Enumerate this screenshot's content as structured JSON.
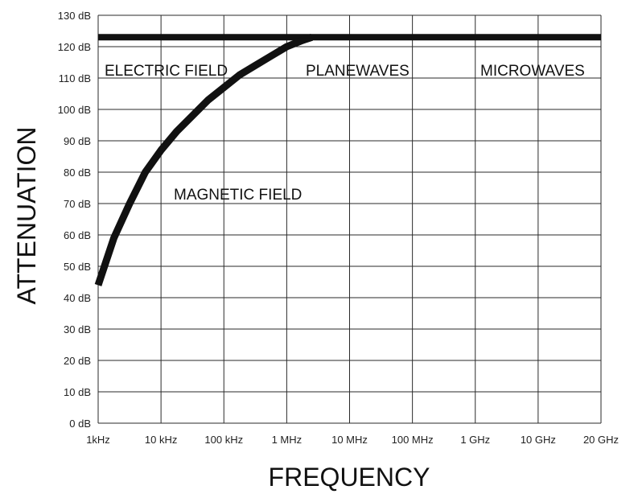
{
  "chart_data": {
    "type": "line",
    "xlabel": "FREQUENCY",
    "ylabel": "ATTENUATION",
    "x_tick_labels": [
      "1kHz",
      "10 kHz",
      "100 kHz",
      "1 MHz",
      "10 MHz",
      "100 MHz",
      "1 GHz",
      "10 GHz",
      "20 GHz"
    ],
    "y_tick_labels": [
      "0 dB",
      "10 dB",
      "20 dB",
      "30 dB",
      "40 dB",
      "50 dB",
      "60 dB",
      "70 dB",
      "80 dB",
      "90 dB",
      "100 dB",
      "110 dB",
      "120 dB",
      "130 dB"
    ],
    "ylim": [
      0,
      130
    ],
    "x_scale": "log",
    "grid": true,
    "annotations": [
      "ELECTRIC FIELD",
      "PLANEWAVES",
      "MICROWAVES",
      "MAGNETIC FIELD"
    ],
    "series": [
      {
        "x_positions": [
          0,
          8
        ],
        "values": [
          123,
          123
        ]
      },
      {
        "x_positions": [
          0,
          0.25,
          0.5,
          0.75,
          1,
          1.25,
          1.5,
          1.75,
          2,
          2.25,
          2.5,
          2.75,
          3,
          3.25,
          3.4
        ],
        "values": [
          44,
          59,
          70,
          80,
          87,
          93,
          98,
          103,
          107,
          111,
          114,
          117,
          120,
          122,
          123
        ]
      }
    ],
    "colors": {
      "line": "#111111",
      "grid": "#2a2a2a",
      "text": "#111111"
    }
  }
}
